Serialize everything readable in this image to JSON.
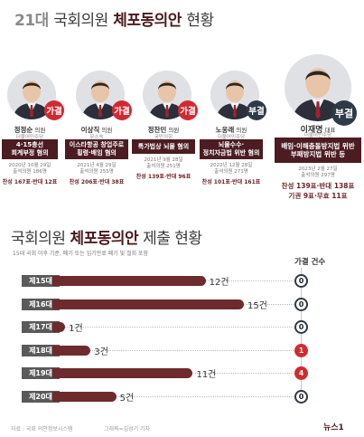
{
  "title": {
    "num": "21대",
    "mid": "국회의원",
    "bold": "체포동의안",
    "tail": "현황"
  },
  "people": [
    {
      "name": "정정순",
      "role": "의원",
      "party": "더불어민주당",
      "result": "가결",
      "charge": "4·15총선\n회계부정 혐의",
      "date": "2020년 10월 29일",
      "turnout": "출석의원 186명",
      "votes": "찬성 167표·반대 12표",
      "result_type": "yes"
    },
    {
      "name": "이상직",
      "role": "의원",
      "party": "무소속",
      "result": "가결",
      "charge": "이스타항공 창업주로\n횡령·배임 혐의",
      "date": "2021년 4월 29일",
      "turnout": "출석의원 255명",
      "votes": "찬성 206표·반대 38표",
      "result_type": "yes"
    },
    {
      "name": "정찬민",
      "role": "의원",
      "party": "국민의힘",
      "result": "가결",
      "charge": "특가법상 뇌물 혐의",
      "date": "2021년 9월 28일",
      "turnout": "출석의원 251명",
      "votes": "찬성 139표·반대 96표",
      "result_type": "yes"
    },
    {
      "name": "노웅래",
      "role": "의원",
      "party": "더불어민주당",
      "result": "부결",
      "charge": "뇌물수수·\n정치자금법 위반 혐의",
      "date": "2022년 12월 28일",
      "turnout": "출석의원 271명",
      "votes": "찬성 101표·반대 161표",
      "result_type": "no"
    },
    {
      "name": "이재명",
      "role": "대표",
      "party": "더불어민주당",
      "result": "부결",
      "charge": "배임·이해충돌방지법 위반\n부패방지법 위반 등",
      "date": "2023년 2월 27일",
      "turnout": "출석의원 297명",
      "votes": "찬성 139표·반대 138표",
      "votes2": "기권 9표·무효 11표",
      "result_type": "no"
    }
  ],
  "section2": {
    "pre": "국회의원",
    "bold": "체포동의안",
    "post": "제출 현황"
  },
  "subtitle": "15대 국회 이후 기준, 폐기 또는 임기만료 폐기 및 철회 포함",
  "col_header": "가결 건수",
  "chart_data": {
    "type": "bar",
    "title": "국회의원 체포동의안 제출 현황",
    "categories": [
      "제15대",
      "제16대",
      "제17대",
      "제18대",
      "제19대",
      "제20대"
    ],
    "series": [
      {
        "values": [
          12,
          15,
          1,
          3,
          11,
          5
        ]
      },
      {
        "name": "가결 건수",
        "values": [
          0,
          0,
          0,
          1,
          4,
          0
        ]
      }
    ],
    "unit": "건",
    "value_labels": [
      "12건",
      "15건",
      "1건",
      "3건",
      "11건",
      "5건"
    ],
    "passed_labels": [
      "0",
      "0",
      "0",
      "1",
      "4",
      "0"
    ]
  },
  "footer": {
    "source": "자료 : 국회 의안정보시스템",
    "credit": "그래픽=김성기 기자",
    "logo": "뉴스1"
  },
  "colors": {
    "accent": "#4b1c22",
    "bar": "#6e2b2e",
    "yes": "#d12a32",
    "no": "#2f3a48"
  }
}
